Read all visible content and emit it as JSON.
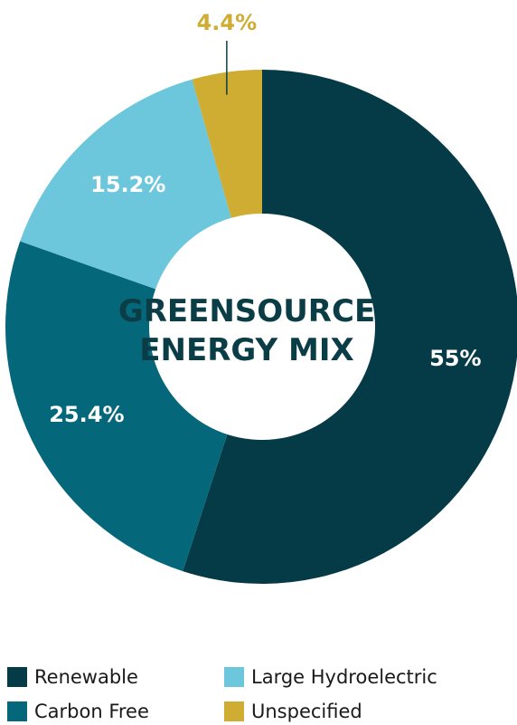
{
  "chart_data": {
    "type": "pie",
    "title_lines": [
      "GREENSOURCE",
      "ENERGY MIX"
    ],
    "categories": [
      "Renewable",
      "Carbon Free",
      "Large Hydroelectric",
      "Unspecified"
    ],
    "values": [
      55,
      25.4,
      15.2,
      4.4
    ],
    "value_labels": [
      "55%",
      "25.4%",
      "15.2%",
      "4.4%"
    ],
    "colors": [
      "#053b47",
      "#05677a",
      "#6cc6dc",
      "#cfac32"
    ],
    "label_colors": [
      "#ffffff",
      "#ffffff",
      "#ffffff",
      "#cfac32"
    ],
    "legend_position": "bottom"
  }
}
